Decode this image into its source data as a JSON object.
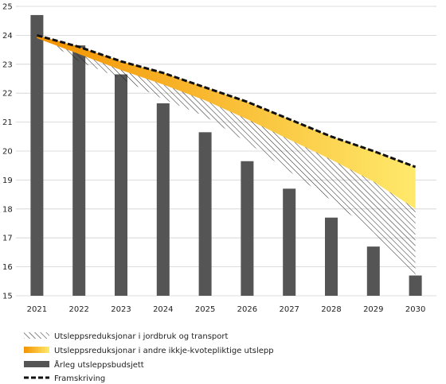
{
  "chart_data": {
    "type": "bar",
    "categories": [
      "2021",
      "2022",
      "2023",
      "2024",
      "2025",
      "2026",
      "2027",
      "2028",
      "2029",
      "2030"
    ],
    "ylim": [
      15,
      25
    ],
    "yticks": [
      15,
      16,
      17,
      18,
      19,
      20,
      21,
      22,
      23,
      24,
      25
    ],
    "grid": true,
    "legend_position": "bottom-left",
    "series": [
      {
        "name": "Årleg utsleppsbudsjett",
        "kind": "bar",
        "color": "#555555",
        "values": [
          24.7,
          23.65,
          22.65,
          21.65,
          20.65,
          19.65,
          18.7,
          17.7,
          16.7,
          15.7
        ]
      },
      {
        "name": "Framskriving",
        "kind": "dashed-line",
        "color": "#111111",
        "values": [
          24.0,
          23.6,
          23.1,
          22.7,
          22.2,
          21.7,
          21.1,
          20.5,
          20.0,
          19.45
        ]
      },
      {
        "name": "Utsleppsreduksjonar i andre ikkje-kvotepliktige utslepp",
        "kind": "band",
        "colors": [
          "#f39200",
          "#ffe96b"
        ],
        "upper": [
          24.0,
          23.6,
          23.1,
          22.7,
          22.2,
          21.7,
          21.1,
          20.5,
          20.0,
          19.45
        ],
        "lower": [
          23.9,
          23.35,
          22.8,
          22.3,
          21.75,
          21.1,
          20.4,
          19.7,
          18.95,
          18.0
        ]
      },
      {
        "name": "Utsleppsreduksjonar i jordbruk og transport",
        "kind": "hatched-band",
        "upper": [
          24.0,
          23.6,
          23.1,
          22.7,
          22.2,
          21.7,
          21.1,
          20.5,
          20.0,
          19.45
        ],
        "lower": [
          24.0,
          23.1,
          22.5,
          21.8,
          21.2,
          20.3,
          19.3,
          18.3,
          17.2,
          15.6
        ]
      }
    ],
    "legend": [
      "Utsleppsreduksjonar i jordbruk og transport",
      "Utsleppsreduksjonar i andre ikkje-kvotepliktige utslepp",
      "Årleg utsleppsbudsjett",
      "Framskriving"
    ]
  }
}
